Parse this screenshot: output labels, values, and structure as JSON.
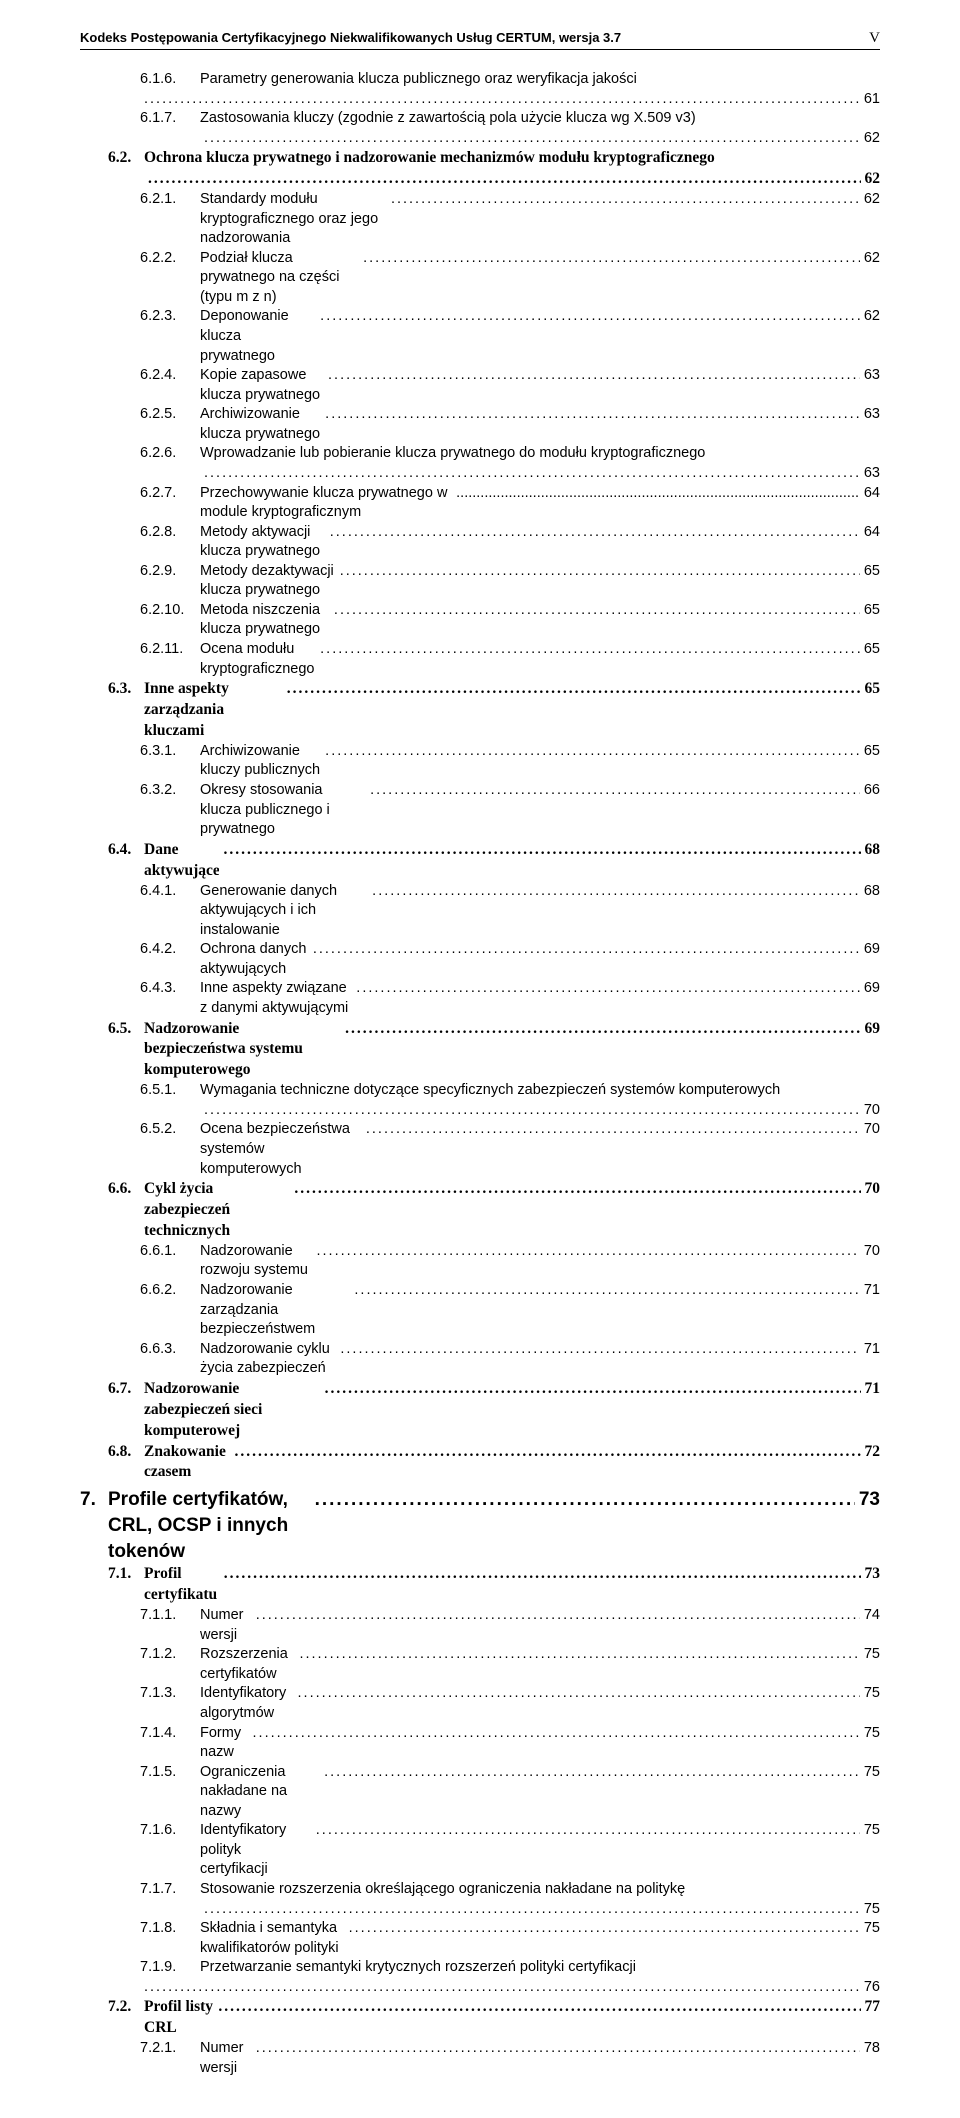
{
  "header": {
    "title": "Kodeks Postępowania Certyfikacyjnego Niekwalifikowanych Usług CERTUM, wersja 3.7",
    "page_marker": "V"
  },
  "toc": [
    {
      "level": 3,
      "num": "6.1.6.",
      "label": "Parametry generowania klucza publicznego oraz weryfikacja jakości",
      "page": "61",
      "wrap": true,
      "dots_leading": true
    },
    {
      "level": 3,
      "num": "6.1.7.",
      "label": "Zastosowania kluczy (zgodnie z zawartością pola użycie klucza wg X.509 v3)",
      "page": "62",
      "wrap": true
    },
    {
      "level": 2,
      "num": "6.2.",
      "label": "Ochrona klucza prywatnego i nadzorowanie mechanizmów modułu kryptograficznego",
      "page": "62",
      "wrap": true
    },
    {
      "level": 3,
      "num": "6.2.1.",
      "label": "Standardy modułu kryptograficznego oraz jego nadzorowania",
      "page": "62"
    },
    {
      "level": 3,
      "num": "6.2.2.",
      "label": "Podział klucza prywatnego na części (typu m z n)",
      "page": "62"
    },
    {
      "level": 3,
      "num": "6.2.3.",
      "label": "Deponowanie klucza prywatnego",
      "page": "62"
    },
    {
      "level": 3,
      "num": "6.2.4.",
      "label": "Kopie zapasowe klucza prywatnego",
      "page": "63"
    },
    {
      "level": 3,
      "num": "6.2.5.",
      "label": "Archiwizowanie klucza prywatnego",
      "page": "63"
    },
    {
      "level": 3,
      "num": "6.2.6.",
      "label": "Wprowadzanie lub pobieranie klucza prywatnego do modułu kryptograficznego",
      "page": "63",
      "wrap": true
    },
    {
      "level": 3,
      "num": "6.2.7.",
      "label": "Przechowywanie klucza prywatnego w module kryptograficznym",
      "page": "64",
      "tight": true
    },
    {
      "level": 3,
      "num": "6.2.8.",
      "label": "Metody aktywacji klucza prywatnego",
      "page": "64"
    },
    {
      "level": 3,
      "num": "6.2.9.",
      "label": "Metody dezaktywacji klucza prywatnego",
      "page": "65"
    },
    {
      "level": 3,
      "num": "6.2.10.",
      "label": "Metoda niszczenia klucza prywatnego",
      "page": "65"
    },
    {
      "level": 3,
      "num": "6.2.11.",
      "label": "Ocena modułu kryptograficznego",
      "page": "65"
    },
    {
      "level": 2,
      "num": "6.3.",
      "label": "Inne aspekty zarządzania kluczami",
      "page": "65"
    },
    {
      "level": 3,
      "num": "6.3.1.",
      "label": "Archiwizowanie kluczy publicznych",
      "page": "65"
    },
    {
      "level": 3,
      "num": "6.3.2.",
      "label": "Okresy stosowania klucza publicznego i prywatnego",
      "page": "66"
    },
    {
      "level": 2,
      "num": "6.4.",
      "label": "Dane aktywujące",
      "page": "68"
    },
    {
      "level": 3,
      "num": "6.4.1.",
      "label": "Generowanie danych aktywujących i ich instalowanie",
      "page": "68"
    },
    {
      "level": 3,
      "num": "6.4.2.",
      "label": "Ochrona danych aktywujących",
      "page": "69"
    },
    {
      "level": 3,
      "num": "6.4.3.",
      "label": "Inne aspekty związane z danymi aktywującymi",
      "page": "69"
    },
    {
      "level": 2,
      "num": "6.5.",
      "label": "Nadzorowanie bezpieczeństwa systemu komputerowego",
      "page": "69"
    },
    {
      "level": 3,
      "num": "6.5.1.",
      "label": "Wymagania techniczne dotyczące specyficznych zabezpieczeń systemów komputerowych",
      "page": "70",
      "wrap": true
    },
    {
      "level": 3,
      "num": "6.5.2.",
      "label": "Ocena bezpieczeństwa systemów komputerowych",
      "page": "70"
    },
    {
      "level": 2,
      "num": "6.6.",
      "label": "Cykl życia zabezpieczeń technicznych",
      "page": "70"
    },
    {
      "level": 3,
      "num": "6.6.1.",
      "label": "Nadzorowanie rozwoju systemu",
      "page": "70"
    },
    {
      "level": 3,
      "num": "6.6.2.",
      "label": "Nadzorowanie zarządzania bezpieczeństwem",
      "page": "71"
    },
    {
      "level": 3,
      "num": "6.6.3.",
      "label": "Nadzorowanie cyklu życia zabezpieczeń",
      "page": "71"
    },
    {
      "level": 2,
      "num": "6.7.",
      "label": "Nadzorowanie zabezpieczeń sieci komputerowej",
      "page": "71"
    },
    {
      "level": 2,
      "num": "6.8.",
      "label": "Znakowanie czasem",
      "page": "72"
    },
    {
      "level": 1,
      "num": "7.",
      "label": "Profile certyfikatów, CRL, OCSP i innych tokenów",
      "page": "73"
    },
    {
      "level": 2,
      "num": "7.1.",
      "label": "Profil certyfikatu",
      "page": "73"
    },
    {
      "level": 3,
      "num": "7.1.1.",
      "label": "Numer wersji",
      "page": "74"
    },
    {
      "level": 3,
      "num": "7.1.2.",
      "label": "Rozszerzenia certyfikatów",
      "page": "75"
    },
    {
      "level": 3,
      "num": "7.1.3.",
      "label": "Identyfikatory algorytmów",
      "page": "75"
    },
    {
      "level": 3,
      "num": "7.1.4.",
      "label": "Formy nazw",
      "page": "75"
    },
    {
      "level": 3,
      "num": "7.1.5.",
      "label": "Ograniczenia nakładane na nazwy",
      "page": "75"
    },
    {
      "level": 3,
      "num": "7.1.6.",
      "label": "Identyfikatory polityk certyfikacji",
      "page": "75"
    },
    {
      "level": 3,
      "num": "7.1.7.",
      "label": "Stosowanie rozszerzenia określającego ograniczenia nakładane na politykę",
      "page": "75",
      "wrap": true
    },
    {
      "level": 3,
      "num": "7.1.8.",
      "label": "Składnia i semantyka kwalifikatorów polityki",
      "page": "75"
    },
    {
      "level": 3,
      "num": "7.1.9.",
      "label": "Przetwarzanie semantyki krytycznych rozszerzeń polityki certyfikacji",
      "page": "76",
      "wrap": true,
      "dots_leading": true
    },
    {
      "level": 2,
      "num": "7.2.",
      "label": "Profil listy CRL",
      "page": "77"
    },
    {
      "level": 3,
      "num": "7.2.1.",
      "label": "Numer wersji",
      "page": "78"
    }
  ]
}
